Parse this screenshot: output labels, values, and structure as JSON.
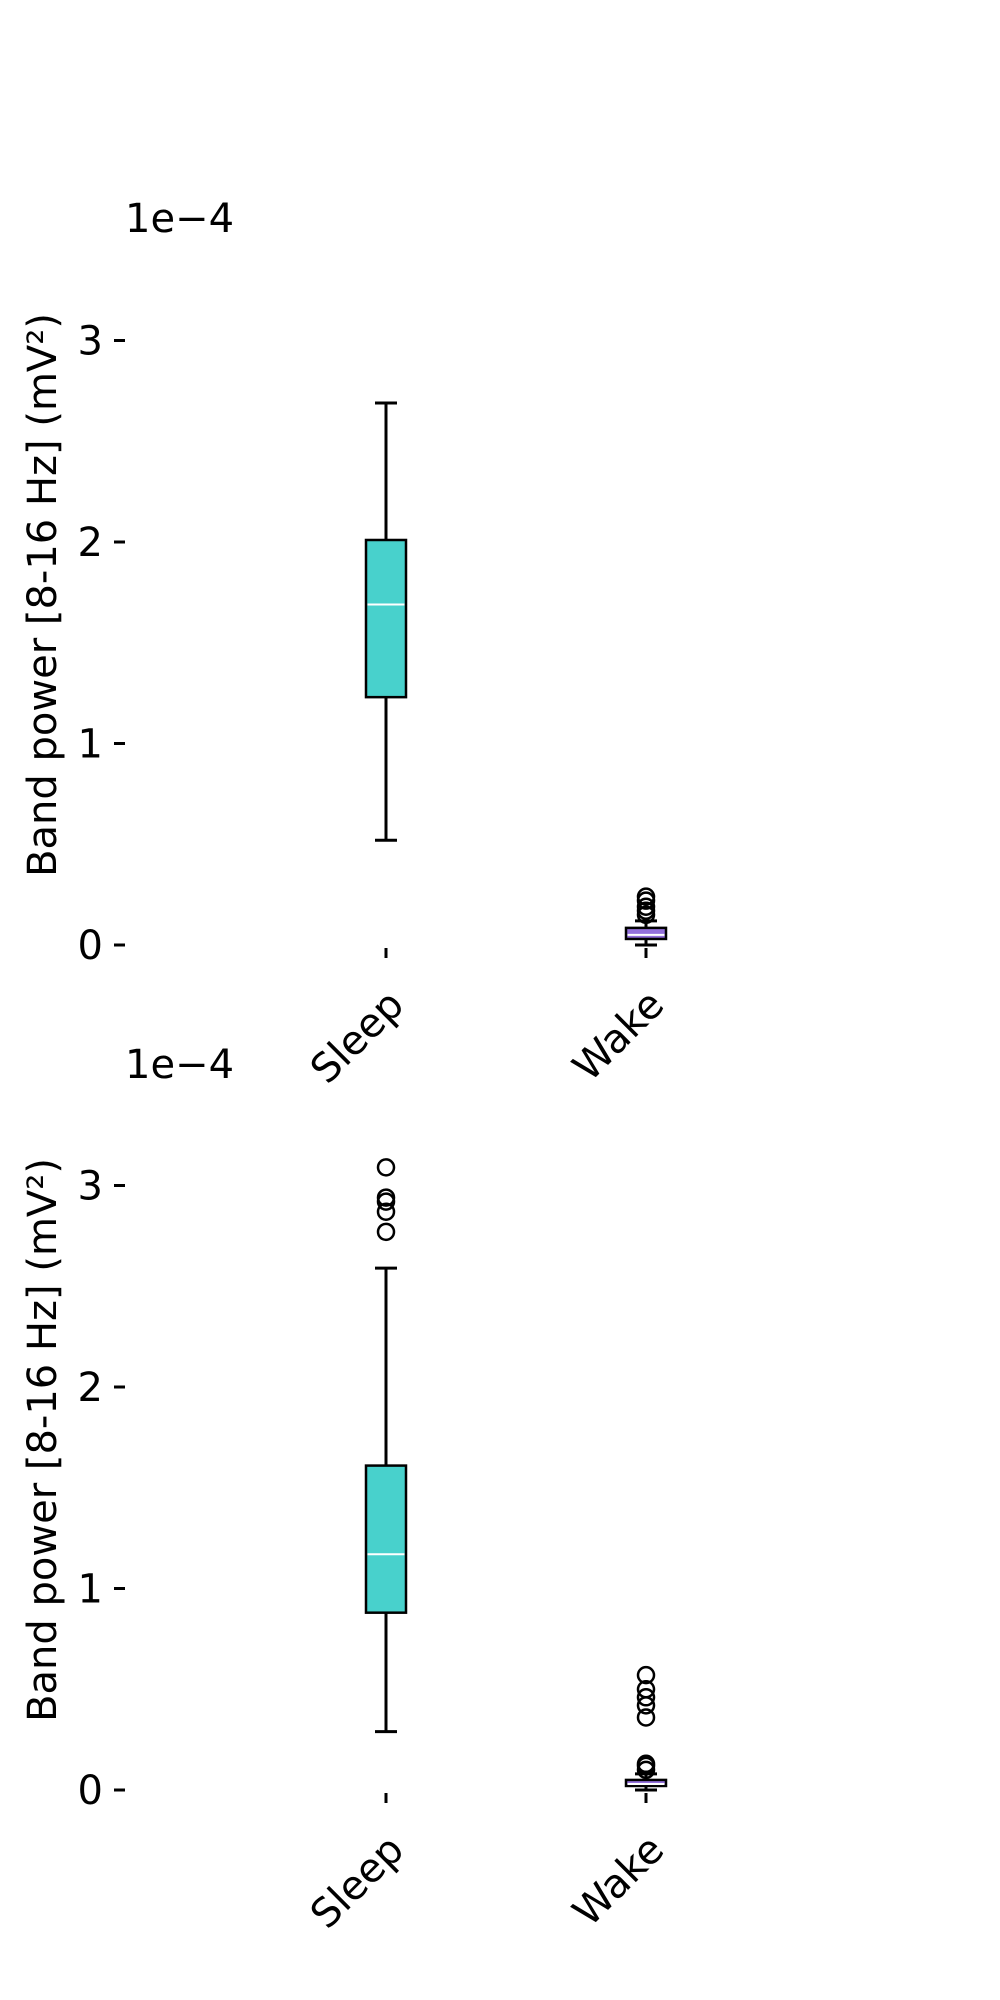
{
  "chart_data": [
    {
      "type": "box",
      "scale_label": "1e−4",
      "ylabel": "Band power [8-16 Hz] (mV²)",
      "ylim": [
        0,
        3.3
      ],
      "yticks": [
        0,
        1,
        2,
        3
      ],
      "ytick_labels": [
        "0",
        "1",
        "2",
        "3"
      ],
      "categories": [
        "Sleep",
        "Wake"
      ],
      "colors": {
        "Sleep": "#48d1cc",
        "Wake": "#9370db",
        "median": "#ffffff"
      },
      "boxes": [
        {
          "label": "Sleep",
          "whisker_low": 0.52,
          "q1": 1.23,
          "median": 1.69,
          "q3": 2.01,
          "whisker_high": 2.69,
          "outliers": []
        },
        {
          "label": "Wake",
          "whisker_low": 0.0,
          "q1": 0.03,
          "median": 0.05,
          "q3": 0.085,
          "whisker_high": 0.12,
          "outliers": [
            0.15,
            0.17,
            0.19,
            0.22,
            0.24
          ]
        }
      ]
    },
    {
      "type": "box",
      "scale_label": "1e−4",
      "ylabel": "Band power [8-16 Hz] (mV²)",
      "ylim": [
        0,
        3.3
      ],
      "yticks": [
        0,
        1,
        2,
        3
      ],
      "ytick_labels": [
        "0",
        "1",
        "2",
        "3"
      ],
      "categories": [
        "Sleep",
        "Wake"
      ],
      "colors": {
        "Sleep": "#48d1cc",
        "Wake": "#9370db",
        "median": "#ffffff"
      },
      "boxes": [
        {
          "label": "Sleep",
          "whisker_low": 0.29,
          "q1": 0.88,
          "median": 1.17,
          "q3": 1.61,
          "whisker_high": 2.59,
          "outliers": [
            2.77,
            2.87,
            2.92,
            2.94,
            3.09
          ]
        },
        {
          "label": "Wake",
          "whisker_low": 0.0,
          "q1": 0.02,
          "median": 0.03,
          "q3": 0.05,
          "whisker_high": 0.08,
          "outliers": [
            0.1,
            0.12,
            0.13,
            0.36,
            0.42,
            0.46,
            0.5,
            0.57
          ]
        }
      ]
    }
  ]
}
